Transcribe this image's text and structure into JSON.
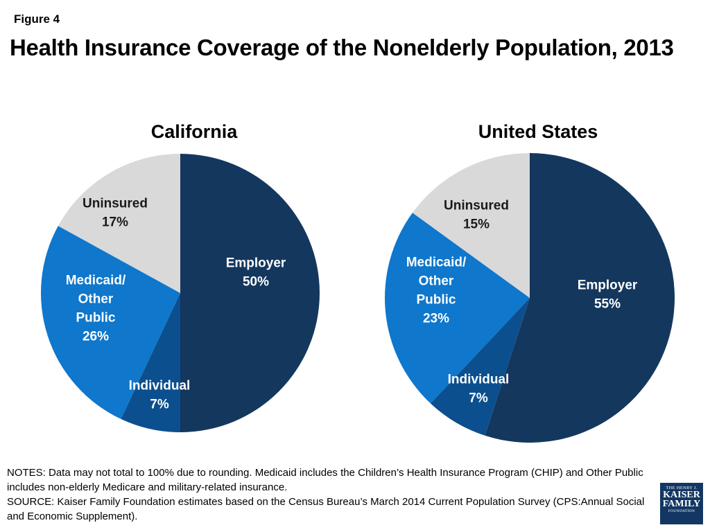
{
  "figure_label": "Figure 4",
  "title": "Health Insurance Coverage of the Nonelderly Population, 2013",
  "chart_data": [
    {
      "type": "pie",
      "title": "California",
      "slices": [
        {
          "label": "Employer",
          "value": 50,
          "value_label": "50%",
          "color": "#14375e"
        },
        {
          "label": "Individual",
          "value": 7,
          "value_label": "7%",
          "color": "#0b4f8f"
        },
        {
          "label": "Medicaid/ Other Public",
          "value": 26,
          "value_label": "26%",
          "color": "#0f77cc"
        },
        {
          "label": "Uninsured",
          "value": 17,
          "value_label": "17%",
          "color": "#d9d9d9"
        }
      ]
    },
    {
      "type": "pie",
      "title": "United States",
      "slices": [
        {
          "label": "Employer",
          "value": 55,
          "value_label": "55%",
          "color": "#14375e"
        },
        {
          "label": "Individual",
          "value": 7,
          "value_label": "7%",
          "color": "#0b4f8f"
        },
        {
          "label": "Medicaid/ Other Public",
          "value": 23,
          "value_label": "23%",
          "color": "#0f77cc"
        },
        {
          "label": "Uninsured",
          "value": 15,
          "value_label": "15%",
          "color": "#d9d9d9"
        }
      ]
    }
  ],
  "notes": {
    "notes_text": "NOTES: Data may not total to 100% due to rounding. Medicaid includes the Children’s Health Insurance Program (CHIP) and Other Public includes non-elderly Medicare and military-related insurance.",
    "source_text": "SOURCE: Kaiser Family Foundation estimates based on the Census Bureau’s March 2014 Current Population Survey (CPS:Annual Social and Economic Supplement)."
  },
  "logo": {
    "line1": "THE HENRY J.",
    "line2": "KAISER",
    "line3": "FAMILY",
    "line4": "FOUNDATION"
  }
}
